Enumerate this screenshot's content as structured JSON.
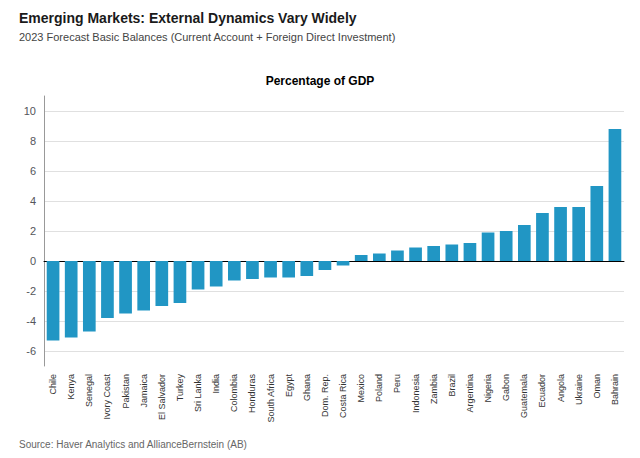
{
  "chart_data": {
    "type": "bar",
    "title": "Emerging Markets: External Dynamics Vary Widely",
    "subtitle": "2023 Forecast Basic Balances (Current Account + Foreign Direct Investment)",
    "annotations": [
      "Percentage of GDP",
      "Source: Haver Analytics and AllianceBernstein (AB)"
    ],
    "categories": [
      "Chile",
      "Kenya",
      "Senegal",
      "Ivory Coast",
      "Pakistan",
      "Jamaica",
      "El Salvador",
      "Turkey",
      "Sri Lanka",
      "India",
      "Colombia",
      "Honduras",
      "South Africa",
      "Egypt",
      "Ghana",
      "Dom. Rep.",
      "Costa Rica",
      "Mexico",
      "Poland",
      "Peru",
      "Indonesia",
      "Zambia",
      "Brazil",
      "Argentina",
      "Nigeria",
      "Gabon",
      "Guatemala",
      "Ecuador",
      "Angola",
      "Ukraine",
      "Oman",
      "Bahrain"
    ],
    "values": [
      -5.3,
      -5.1,
      -4.7,
      -3.8,
      -3.5,
      -3.3,
      -3.0,
      -2.8,
      -1.9,
      -1.7,
      -1.3,
      -1.2,
      -1.1,
      -1.1,
      -1.0,
      -0.6,
      -0.3,
      0.4,
      0.5,
      0.7,
      0.9,
      1.0,
      1.1,
      1.2,
      1.9,
      2.0,
      2.4,
      3.2,
      3.6,
      3.6,
      5.0,
      8.8
    ],
    "color": "#2196C4",
    "ylim": [
      -7,
      11
    ],
    "yticks": [
      -6,
      -4,
      -2,
      0,
      2,
      4,
      6,
      8,
      10
    ],
    "grid": true
  }
}
